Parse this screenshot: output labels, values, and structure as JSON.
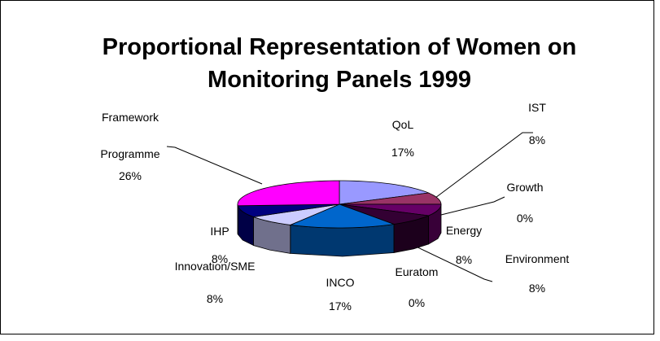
{
  "chart_data": {
    "type": "pie3d",
    "title": "Proportional Representation of Women on Monitoring Panels 1999",
    "categories": [
      "QoL",
      "IST",
      "Growth",
      "Energy",
      "Environment",
      "Euratom",
      "INCO",
      "Innovation/SME",
      "IHP",
      "Framework Programme"
    ],
    "values": [
      17,
      8,
      0,
      8,
      8,
      0,
      17,
      8,
      8,
      26
    ],
    "value_labels": [
      "17%",
      "8%",
      "0%",
      "8%",
      "8%",
      "0%",
      "17%",
      "8%",
      "8%",
      "26%"
    ],
    "colors": [
      "#9999ff",
      "#993366",
      "#ccffff",
      "#660066",
      "#330033",
      "#808080",
      "#0066cc",
      "#ccccff",
      "#000080",
      "#ff00ff"
    ]
  }
}
